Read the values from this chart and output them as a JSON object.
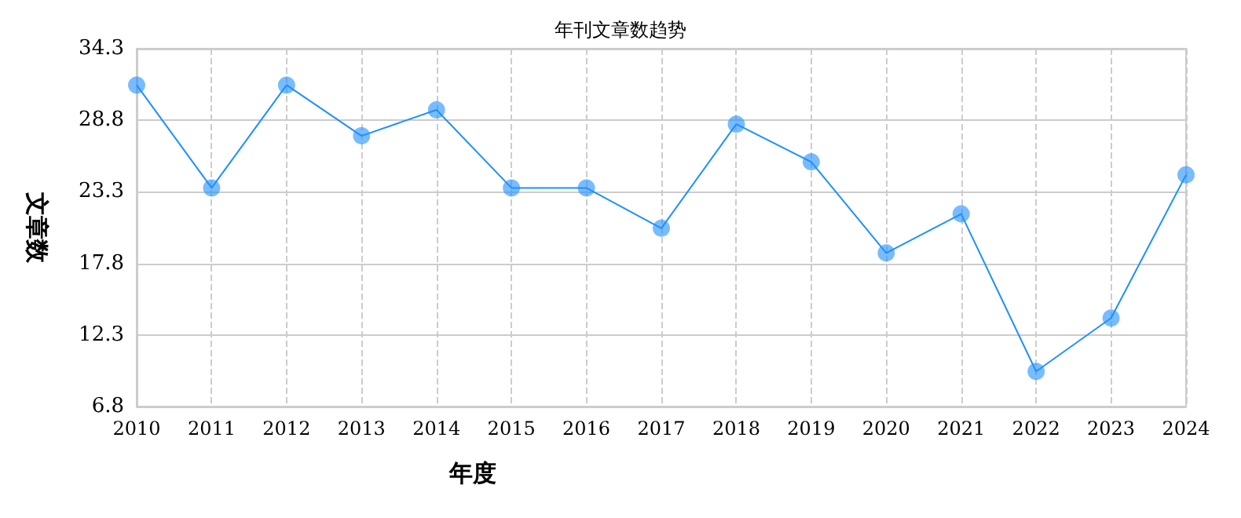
{
  "chart_data": {
    "type": "line",
    "title": "年刊文章数趋势",
    "xlabel": "年度",
    "ylabel": "文章数",
    "categories": [
      "2010",
      "2011",
      "2012",
      "2013",
      "2014",
      "2015",
      "2016",
      "2017",
      "2018",
      "2019",
      "2020",
      "2021",
      "2022",
      "2023",
      "2024"
    ],
    "series": [
      {
        "color": "#1e90ff",
        "values": [
          31.5,
          23.6,
          31.5,
          27.6,
          29.6,
          23.6,
          23.6,
          20.5,
          28.5,
          25.6,
          18.6,
          21.6,
          9.5,
          13.6,
          24.6
        ]
      }
    ],
    "ylim": [
      6.8,
      34.3
    ],
    "yticks": [
      6.8,
      12.3,
      17.8,
      23.3,
      28.8,
      34.3
    ],
    "grid": true,
    "marker": "circle",
    "line_style": "solid"
  }
}
